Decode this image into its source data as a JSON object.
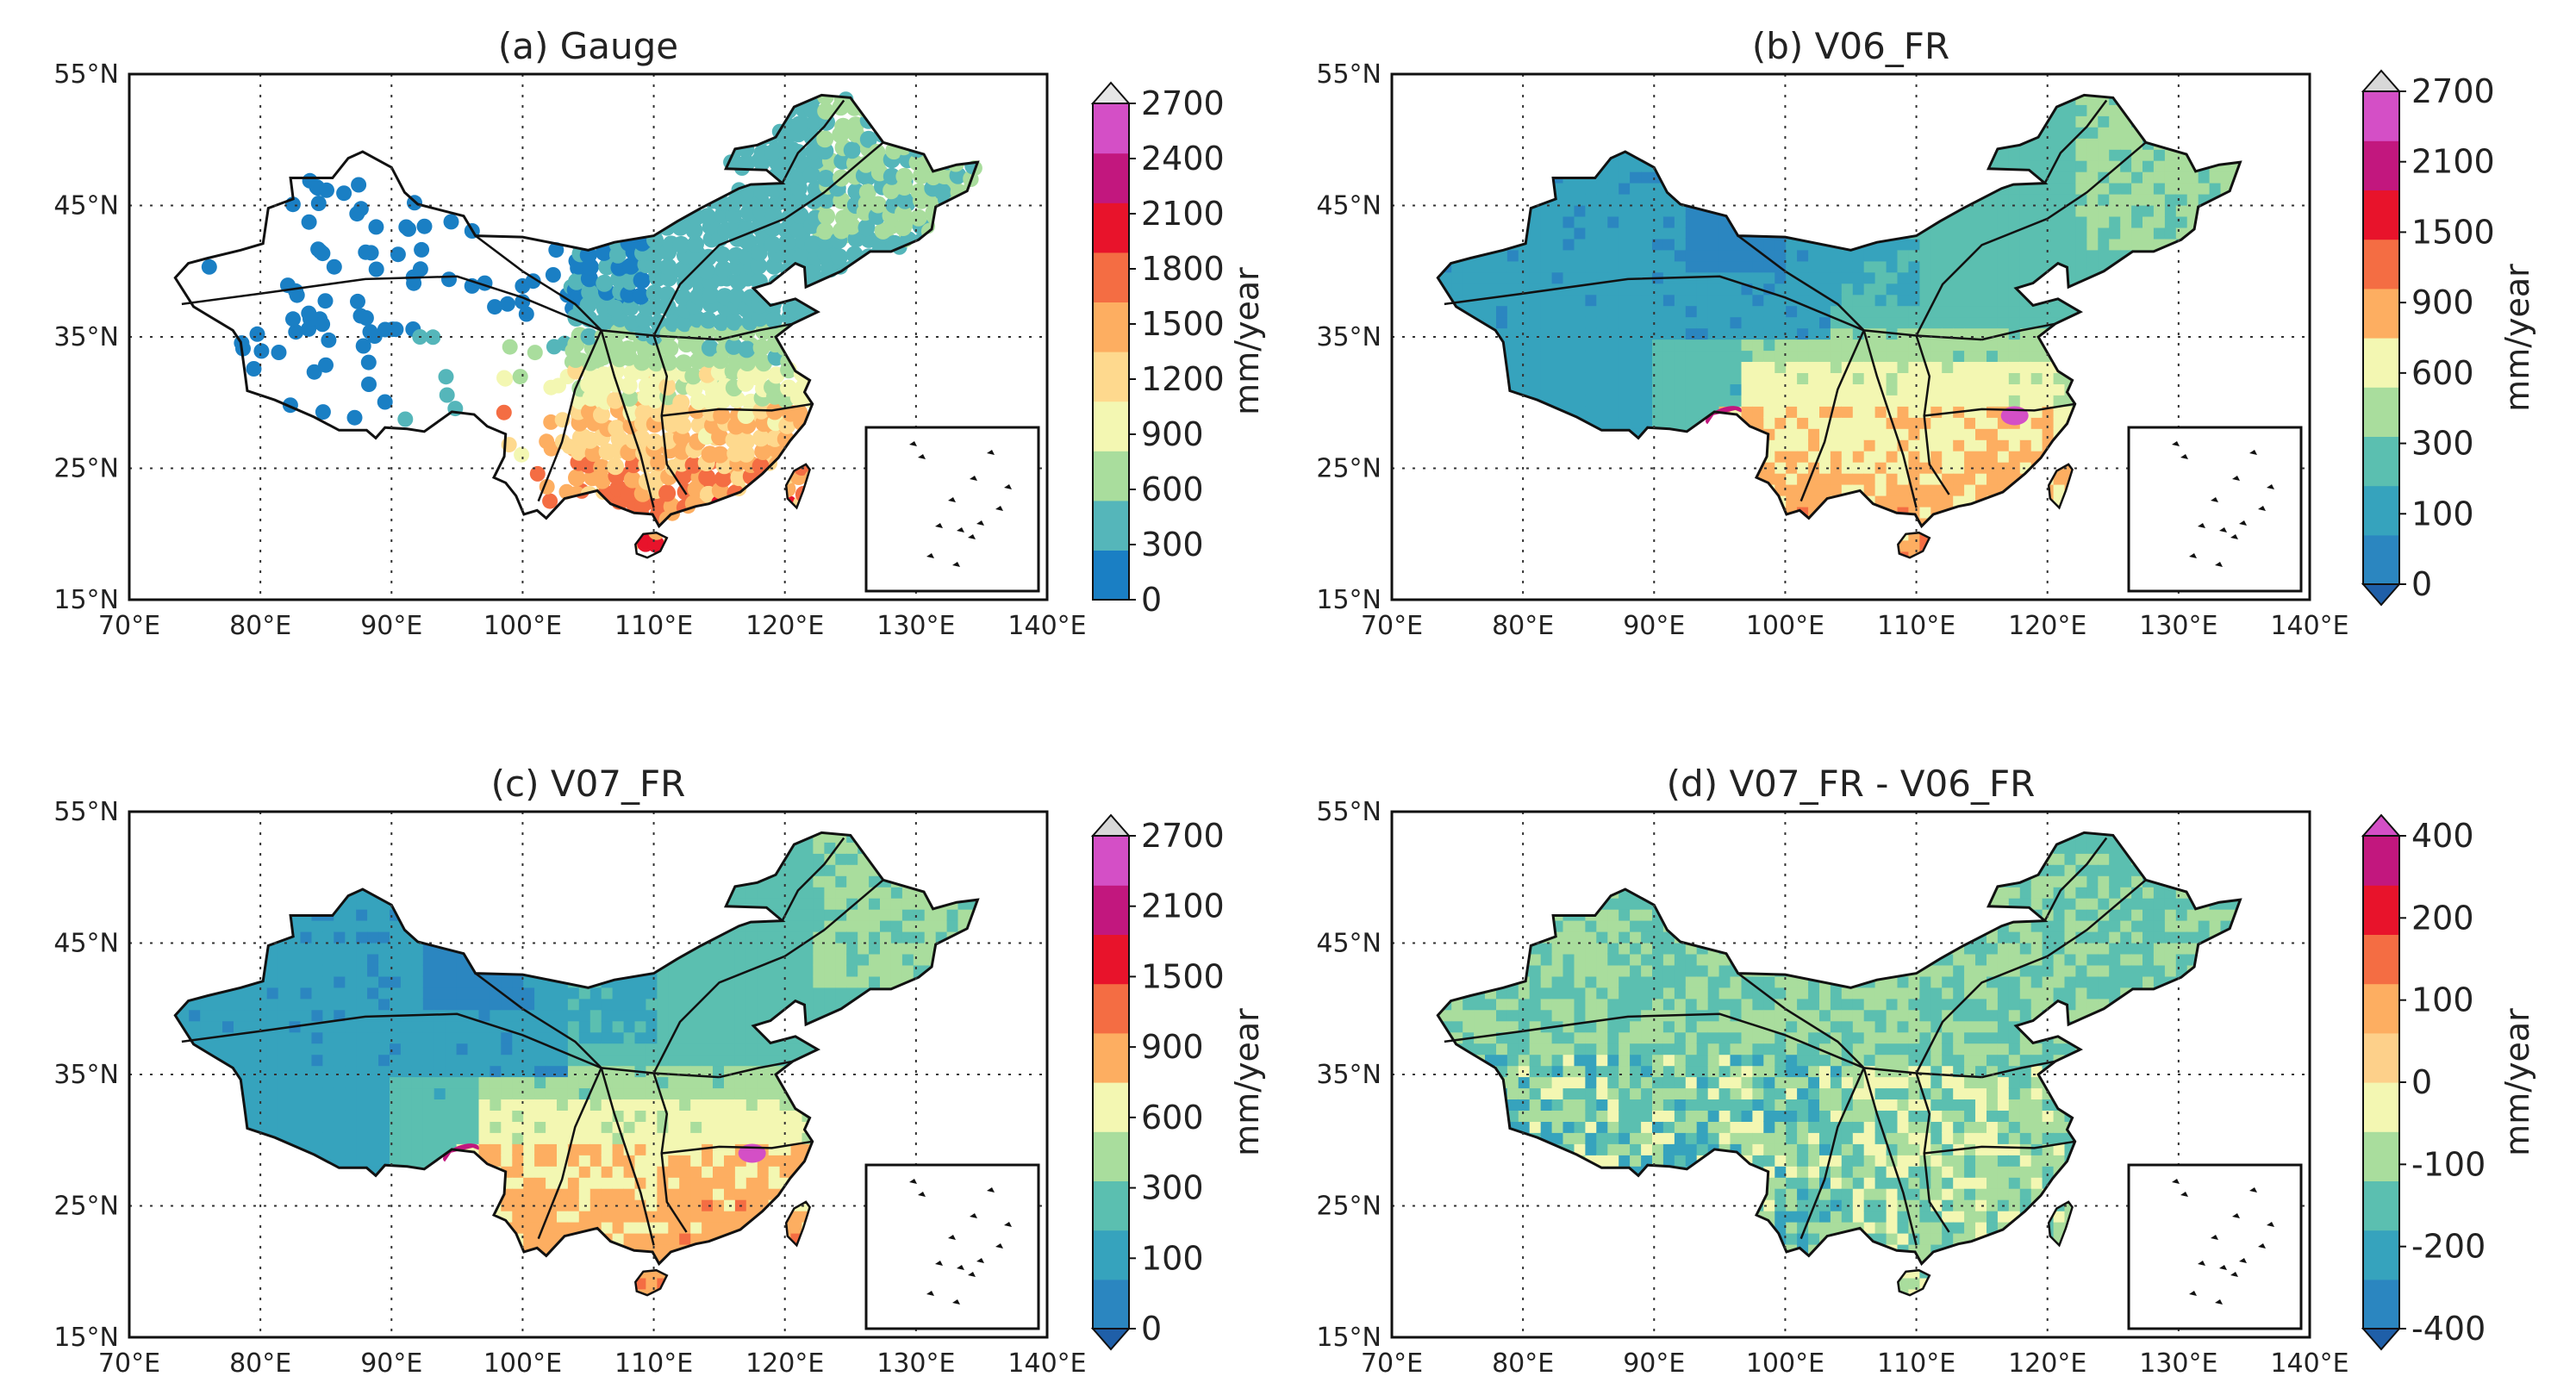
{
  "figure": {
    "colors": {
      "land_mask": "#ffffff",
      "grid": "#333333",
      "boundary": "#111111"
    }
  },
  "chart_data": [
    {
      "type": "heatmap",
      "panel": "a",
      "title": "(a) Gauge",
      "style": "gauge points",
      "xlabel": "",
      "ylabel": "",
      "xlim": [
        70,
        140
      ],
      "ylim": [
        15,
        55
      ],
      "x_ticks": [
        "70°E",
        "80°E",
        "90°E",
        "100°E",
        "110°E",
        "120°E",
        "130°E",
        "140°E"
      ],
      "y_ticks": [
        "15°N",
        "25°N",
        "35°N",
        "45°N",
        "55°N"
      ],
      "colorbar": {
        "label": "mm/year",
        "ticks": [
          "0",
          "300",
          "600",
          "900",
          "1200",
          "1500",
          "1800",
          "2100",
          "2400",
          "2700"
        ],
        "levels": [
          0,
          300,
          600,
          900,
          1200,
          1500,
          1800,
          2100,
          2400,
          2700
        ],
        "colors": [
          "#1a7fc4",
          "#55b6ba",
          "#a9dd9d",
          "#f3f7b2",
          "#fed98e",
          "#fdae61",
          "#f46d43",
          "#e8132b",
          "#c2177e",
          "#d44fc6",
          "#e6e6e6"
        ],
        "extend": "max"
      }
    },
    {
      "type": "heatmap",
      "panel": "b",
      "title": "(b) V06_FR",
      "style": "filled",
      "xlabel": "",
      "ylabel": "",
      "xlim": [
        70,
        140
      ],
      "ylim": [
        15,
        55
      ],
      "x_ticks": [
        "70°E",
        "80°E",
        "90°E",
        "100°E",
        "110°E",
        "120°E",
        "130°E",
        "140°E"
      ],
      "y_ticks": [
        "15°N",
        "25°N",
        "35°N",
        "45°N",
        "55°N"
      ],
      "colorbar": {
        "label": "mm/year",
        "ticks": [
          "0",
          "100",
          "300",
          "600",
          "900",
          "1500",
          "2100",
          "2700"
        ],
        "levels": [
          0,
          100,
          300,
          600,
          900,
          1500,
          2100,
          2700
        ],
        "colors": [
          "#1f5fa8",
          "#2b86c0",
          "#36a3bd",
          "#5bbfb0",
          "#a9dd9d",
          "#f3f7b2",
          "#fdae61",
          "#f46d43",
          "#e8132b",
          "#c2177e",
          "#d44fc6",
          "#d8d8d8"
        ],
        "extend": "both"
      }
    },
    {
      "type": "heatmap",
      "panel": "c",
      "title": "(c) V07_FR",
      "style": "filled",
      "xlabel": "",
      "ylabel": "",
      "xlim": [
        70,
        140
      ],
      "ylim": [
        15,
        55
      ],
      "x_ticks": [
        "70°E",
        "80°E",
        "90°E",
        "100°E",
        "110°E",
        "120°E",
        "130°E",
        "140°E"
      ],
      "y_ticks": [
        "15°N",
        "25°N",
        "35°N",
        "45°N",
        "55°N"
      ],
      "colorbar": {
        "label": "mm/year",
        "ticks": [
          "0",
          "100",
          "300",
          "600",
          "900",
          "1500",
          "2100",
          "2700"
        ],
        "levels": [
          0,
          100,
          300,
          600,
          900,
          1500,
          2100,
          2700
        ],
        "colors": [
          "#1f5fa8",
          "#2b86c0",
          "#36a3bd",
          "#5bbfb0",
          "#a9dd9d",
          "#f3f7b2",
          "#fdae61",
          "#f46d43",
          "#e8132b",
          "#c2177e",
          "#d44fc6",
          "#d8d8d8"
        ],
        "extend": "both"
      }
    },
    {
      "type": "heatmap",
      "panel": "d",
      "title": "(d) V07_FR - V06_FR",
      "style": "difference",
      "xlabel": "",
      "ylabel": "",
      "xlim": [
        70,
        140
      ],
      "ylim": [
        15,
        55
      ],
      "x_ticks": [
        "70°E",
        "80°E",
        "90°E",
        "100°E",
        "110°E",
        "120°E",
        "130°E",
        "140°E"
      ],
      "y_ticks": [
        "15°N",
        "25°N",
        "35°N",
        "45°N",
        "55°N"
      ],
      "colorbar": {
        "label": "mm/year",
        "ticks": [
          "-400",
          "-200",
          "-100",
          "0",
          "100",
          "200",
          "400"
        ],
        "levels": [
          -400,
          -200,
          -100,
          0,
          100,
          200,
          400
        ],
        "colors": [
          "#1f5fa8",
          "#2b86c0",
          "#36a3bd",
          "#5bbfb0",
          "#a9dd9d",
          "#f3f7b2",
          "#fdd08a",
          "#fdae61",
          "#f46d43",
          "#e8132b",
          "#c2177e",
          "#d44fc6"
        ],
        "extend": "both"
      }
    }
  ]
}
